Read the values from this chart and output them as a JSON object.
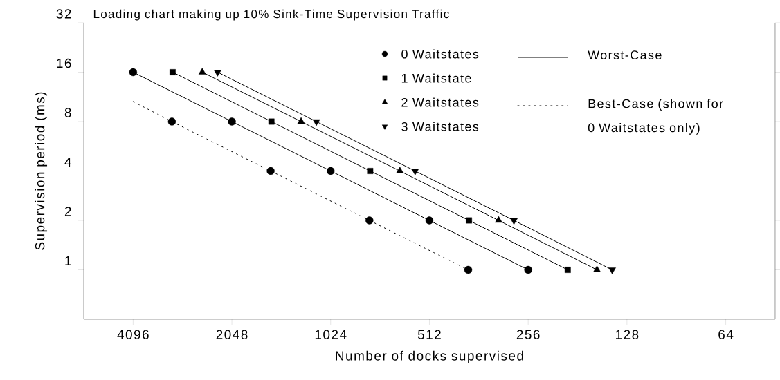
{
  "chart_data": {
    "type": "line",
    "title": "Loading chart making up 10% Sink-Time Supervision Traffic",
    "xlabel": "Number of docks supervised",
    "ylabel": "Supervision period (ms)",
    "log": "xy",
    "xlim": [
      5793,
      45.25
    ],
    "ylim": [
      0.5,
      32
    ],
    "xticks": [
      4096,
      2048,
      1024,
      512,
      256,
      128,
      64
    ],
    "yticks": [
      1,
      2,
      4,
      8,
      16,
      32
    ],
    "legend": "top right",
    "grid": false,
    "series": [
      {
        "name": "0 Waitstates",
        "type": "scatter",
        "marker": "circle",
        "color": "#000000",
        "x": [
          4096,
          2048,
          1024,
          512,
          256,
          3120,
          1560,
          780,
          390
        ],
        "values": [
          16,
          8,
          4,
          2,
          1,
          8,
          4,
          2,
          1
        ]
      },
      {
        "name": "1 Waitstate",
        "type": "scatter",
        "marker": "square",
        "color": "#000000",
        "x": [
          3104,
          1552,
          776,
          388,
          194
        ],
        "values": [
          16,
          8,
          4,
          2,
          1
        ]
      },
      {
        "name": "2 Waitstates",
        "type": "scatter",
        "marker": "triangle",
        "color": "#000000",
        "x": [
          2521,
          1260,
          630,
          315,
          158
        ],
        "values": [
          16,
          8,
          4,
          2,
          1
        ]
      },
      {
        "name": "3 Waitstates",
        "type": "scatter",
        "marker": "triangle-down",
        "color": "#000000",
        "x": [
          2264,
          1132,
          566,
          283,
          142
        ],
        "values": [
          16,
          8,
          4,
          2,
          1
        ]
      },
      {
        "name": "Worst-Case",
        "type": "line",
        "marker": "none",
        "line_style": "solid",
        "color": "#000000",
        "x": [
          4096,
          2048,
          1024,
          512,
          256,
          null,
          3104,
          1552,
          776,
          388,
          194,
          null,
          2521,
          1260,
          630,
          315,
          158,
          null,
          2264,
          1132,
          566,
          283,
          142
        ],
        "values": [
          16,
          8,
          4,
          2,
          1,
          null,
          16,
          8,
          4,
          2,
          1,
          null,
          16,
          8,
          4,
          2,
          1,
          null,
          16,
          8,
          4,
          2,
          1
        ]
      },
      {
        "name": "Best-Case (shown for 0 Waitstates only)",
        "type": "line",
        "marker": "none",
        "line_style": "dotted",
        "color": "#000000",
        "x": [
          4096,
          3120,
          1560,
          780,
          390
        ],
        "values": [
          10.6,
          8,
          4,
          2,
          1
        ]
      }
    ]
  }
}
